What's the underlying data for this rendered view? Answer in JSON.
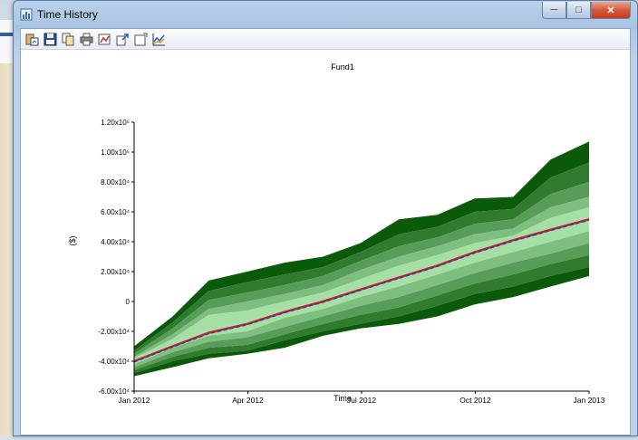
{
  "window": {
    "title": "Time History"
  },
  "toolbar": {
    "buttons": [
      {
        "icon": "paste-chart-icon"
      },
      {
        "icon": "save-icon"
      },
      {
        "icon": "copy-icon"
      },
      {
        "icon": "print-icon"
      },
      {
        "icon": "chart-settings-icon"
      },
      {
        "icon": "export-icon"
      },
      {
        "icon": "window-icon"
      },
      {
        "icon": "line-chart-icon"
      }
    ]
  },
  "colors": {
    "band_outer": "#0a5a0a",
    "band_inner": "#b8f0b8",
    "mean_line": "#cc2020",
    "median_line": "#2040c0"
  },
  "chart_data": {
    "type": "area",
    "title": "Fund1",
    "xlabel": "Time",
    "ylabel": "($)",
    "x": [
      "2012-01-01",
      "2012-02-01",
      "2012-03-01",
      "2012-04-01",
      "2012-05-01",
      "2012-06-01",
      "2012-07-01",
      "2012-08-01",
      "2012-09-01",
      "2012-10-01",
      "2012-11-01",
      "2012-12-01",
      "2013-01-01"
    ],
    "xticks": [
      "Jan 2012",
      "Apr 2012",
      "Jul 2012",
      "Oct 2012",
      "Jan 2013"
    ],
    "yticks": [
      "1.20x10⁵",
      "1.00x10⁵",
      "8.00x10⁴",
      "6.00x10⁴",
      "4.00x10⁴",
      "2.00x10⁴",
      "0",
      "-2.00x10⁴",
      "-4.00x10⁴",
      "-6.00x10⁴"
    ],
    "ylim": [
      -60000,
      120000
    ],
    "grid": false,
    "series": [
      {
        "values": [
          -30000,
          -10000,
          14000,
          20000,
          26000,
          30000,
          39000,
          55000,
          58000,
          69000,
          70000,
          95000,
          107000
        ]
      },
      {
        "values": [
          -33000,
          -14000,
          7000,
          13000,
          18000,
          23000,
          33000,
          45000,
          50000,
          60000,
          62000,
          83000,
          93000
        ]
      },
      {
        "values": [
          -35000,
          -18000,
          1000,
          6000,
          11000,
          17000,
          27000,
          37000,
          43000,
          52000,
          55000,
          72000,
          80000
        ]
      },
      {
        "values": [
          -37000,
          -22000,
          -5000,
          0,
          5000,
          11000,
          21000,
          30000,
          37000,
          45000,
          49000,
          63000,
          70000
        ]
      },
      {
        "values": [
          -38000,
          -25000,
          -9000,
          -6000,
          0,
          6000,
          15000,
          24000,
          31000,
          39000,
          44000,
          56000,
          63000
        ]
      },
      {
        "values": [
          -40000,
          -28000,
          -19000,
          -13000,
          -5000,
          1000,
          9000,
          17000,
          25000,
          33000,
          40000,
          48000,
          55000
        ]
      },
      {
        "values": [
          -42000,
          -31000,
          -23000,
          -20000,
          -11000,
          -5000,
          3000,
          10000,
          18000,
          26000,
          33000,
          40000,
          47000
        ]
      },
      {
        "values": [
          -44000,
          -34000,
          -27000,
          -24000,
          -17000,
          -10000,
          -3000,
          3000,
          11000,
          19000,
          26000,
          32000,
          39000
        ]
      },
      {
        "values": [
          -46000,
          -37000,
          -31000,
          -29000,
          -22000,
          -15000,
          -9000,
          -4000,
          4000,
          12000,
          18000,
          25000,
          31000
        ]
      },
      {
        "values": [
          -48000,
          -40000,
          -35000,
          -33000,
          -26000,
          -20000,
          -15000,
          -10000,
          -3000,
          5000,
          10000,
          17000,
          23000
        ]
      },
      {
        "values": [
          -50000,
          -44000,
          -38000,
          -35000,
          -31000,
          -23000,
          -18000,
          -15000,
          -10000,
          -2000,
          3000,
          10000,
          17000
        ]
      },
      {
        "values": [
          -40000,
          -30000,
          -21000,
          -15000,
          -7000,
          0,
          8000,
          16000,
          24000,
          33000,
          41000,
          48000,
          55000
        ]
      },
      {
        "values": [
          -40500,
          -30500,
          -21500,
          -15500,
          -7500,
          -500,
          7500,
          15500,
          23500,
          32500,
          40500,
          47500,
          54500
        ]
      }
    ]
  }
}
